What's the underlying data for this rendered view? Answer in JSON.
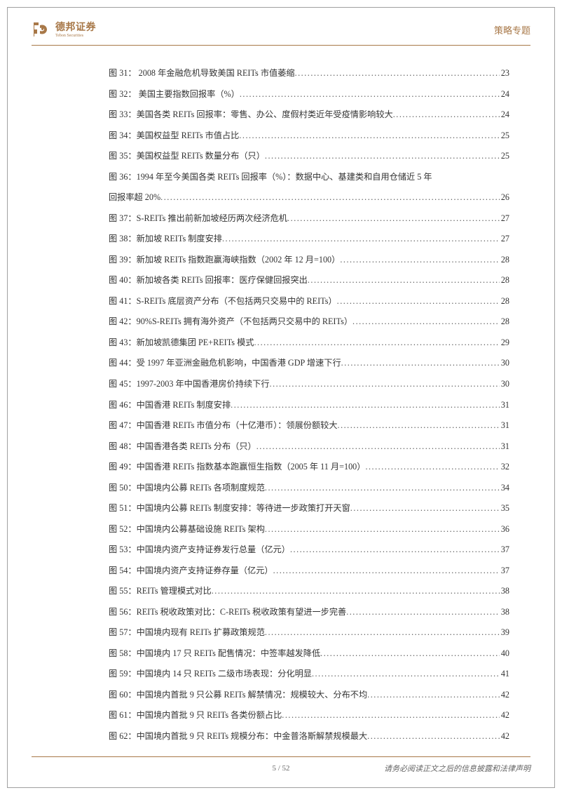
{
  "header": {
    "company_name": "德邦证券",
    "company_en": "Tebon Securities",
    "section_label": "策略专题",
    "logo_color": "#a87848"
  },
  "toc": [
    {
      "label": "图 31：  2008 年金融危机导致美国 REITs 市值萎缩",
      "page": "23"
    },
    {
      "label": "图 32：  美国主要指数回报率（%）",
      "page": "24"
    },
    {
      "label": "图 33：美国各类 REITs 回报率：零售、办公、度假村类近年受疫情影响较大",
      "page": "24"
    },
    {
      "label": "图 34：美国权益型 REITs 市值占比",
      "page": "25"
    },
    {
      "label": "图 35：美国权益型 REITs 数量分布（只）",
      "page": "25"
    },
    {
      "label": "图 36：1994 年至今美国各类 REITs 回报率（%）：数据中心、基建类和自用仓储近 5 年",
      "page": "",
      "wrap": true
    },
    {
      "label": "回报率超 20%",
      "page": "26"
    },
    {
      "label": "图 37：S-REITs 推出前新加坡经历两次经济危机",
      "page": "27"
    },
    {
      "label": "图 38：新加坡 REITs 制度安排",
      "page": "27"
    },
    {
      "label": "图 39：新加坡 REITs 指数跑赢海峡指数（2002 年 12 月=100）",
      "page": "28"
    },
    {
      "label": "图 40：新加坡各类 REITs 回报率：医疗保健回报突出",
      "page": "28"
    },
    {
      "label": "图 41：S-REITs 底层资产分布（不包括两只交易中的 REITs）",
      "page": "28"
    },
    {
      "label": "图 42：90%S-REITs 拥有海外资产（不包括两只交易中的 REITs）",
      "page": "28"
    },
    {
      "label": "图 43：新加坡凯德集团 PE+REITs 模式",
      "page": "29"
    },
    {
      "label": "图 44：受 1997 年亚洲金融危机影响，中国香港 GDP 增速下行",
      "page": "30"
    },
    {
      "label": "图 45：1997-2003 年中国香港房价持续下行",
      "page": "30"
    },
    {
      "label": "图 46：中国香港 REITs 制度安排",
      "page": "31"
    },
    {
      "label": "图 47：中国香港 REITs 市值分布（十亿港币）：领展份额较大",
      "page": "31"
    },
    {
      "label": "图 48：中国香港各类 REITs 分布（只）",
      "page": "31"
    },
    {
      "label": "图 49：中国香港 REITs 指数基本跑赢恒生指数（2005 年 11 月=100）",
      "page": "32"
    },
    {
      "label": "图 50：中国境内公募 REITs 各项制度规范",
      "page": "34"
    },
    {
      "label": "图 51：中国境内公募 REITs 制度安排：等待进一步政策打开天窗",
      "page": "35"
    },
    {
      "label": "图 52：中国境内公募基础设施 REITs 架构",
      "page": "36"
    },
    {
      "label": "图 53：中国境内资产支持证券发行总量（亿元）",
      "page": "37"
    },
    {
      "label": "图 54：中国境内资产支持证券存量（亿元）",
      "page": "37"
    },
    {
      "label": "图 55：REITs 管理模式对比",
      "page": "38"
    },
    {
      "label": "图 56：REITs 税收政策对比：C-REITs 税收政策有望进一步完善",
      "page": "38"
    },
    {
      "label": "图 57：中国境内现有 REITs 扩募政策规范",
      "page": "39"
    },
    {
      "label": "图 58：中国境内 17 只 REITs 配售情况：中签率越发降低",
      "page": "40"
    },
    {
      "label": "图 59：中国境内 14 只 REITs 二级市场表现：分化明显",
      "page": "41"
    },
    {
      "label": "图 60：中国境内首批 9 只公募 REITs 解禁情况：规模较大、分布不均",
      "page": "42"
    },
    {
      "label": "图 61：中国境内首批 9 只 REITs 各类份额占比",
      "page": "42"
    },
    {
      "label": "图 62：中国境内首批 9 只 REITs 规模分布：中金普洛斯解禁规模最大",
      "page": "42"
    }
  ],
  "footer": {
    "page_current": "5",
    "page_total": "52",
    "disclaimer": "请务必阅读正文之后的信息披露和法律声明"
  },
  "colors": {
    "accent": "#a87848",
    "text": "#333333",
    "border": "#a0a0a0"
  }
}
